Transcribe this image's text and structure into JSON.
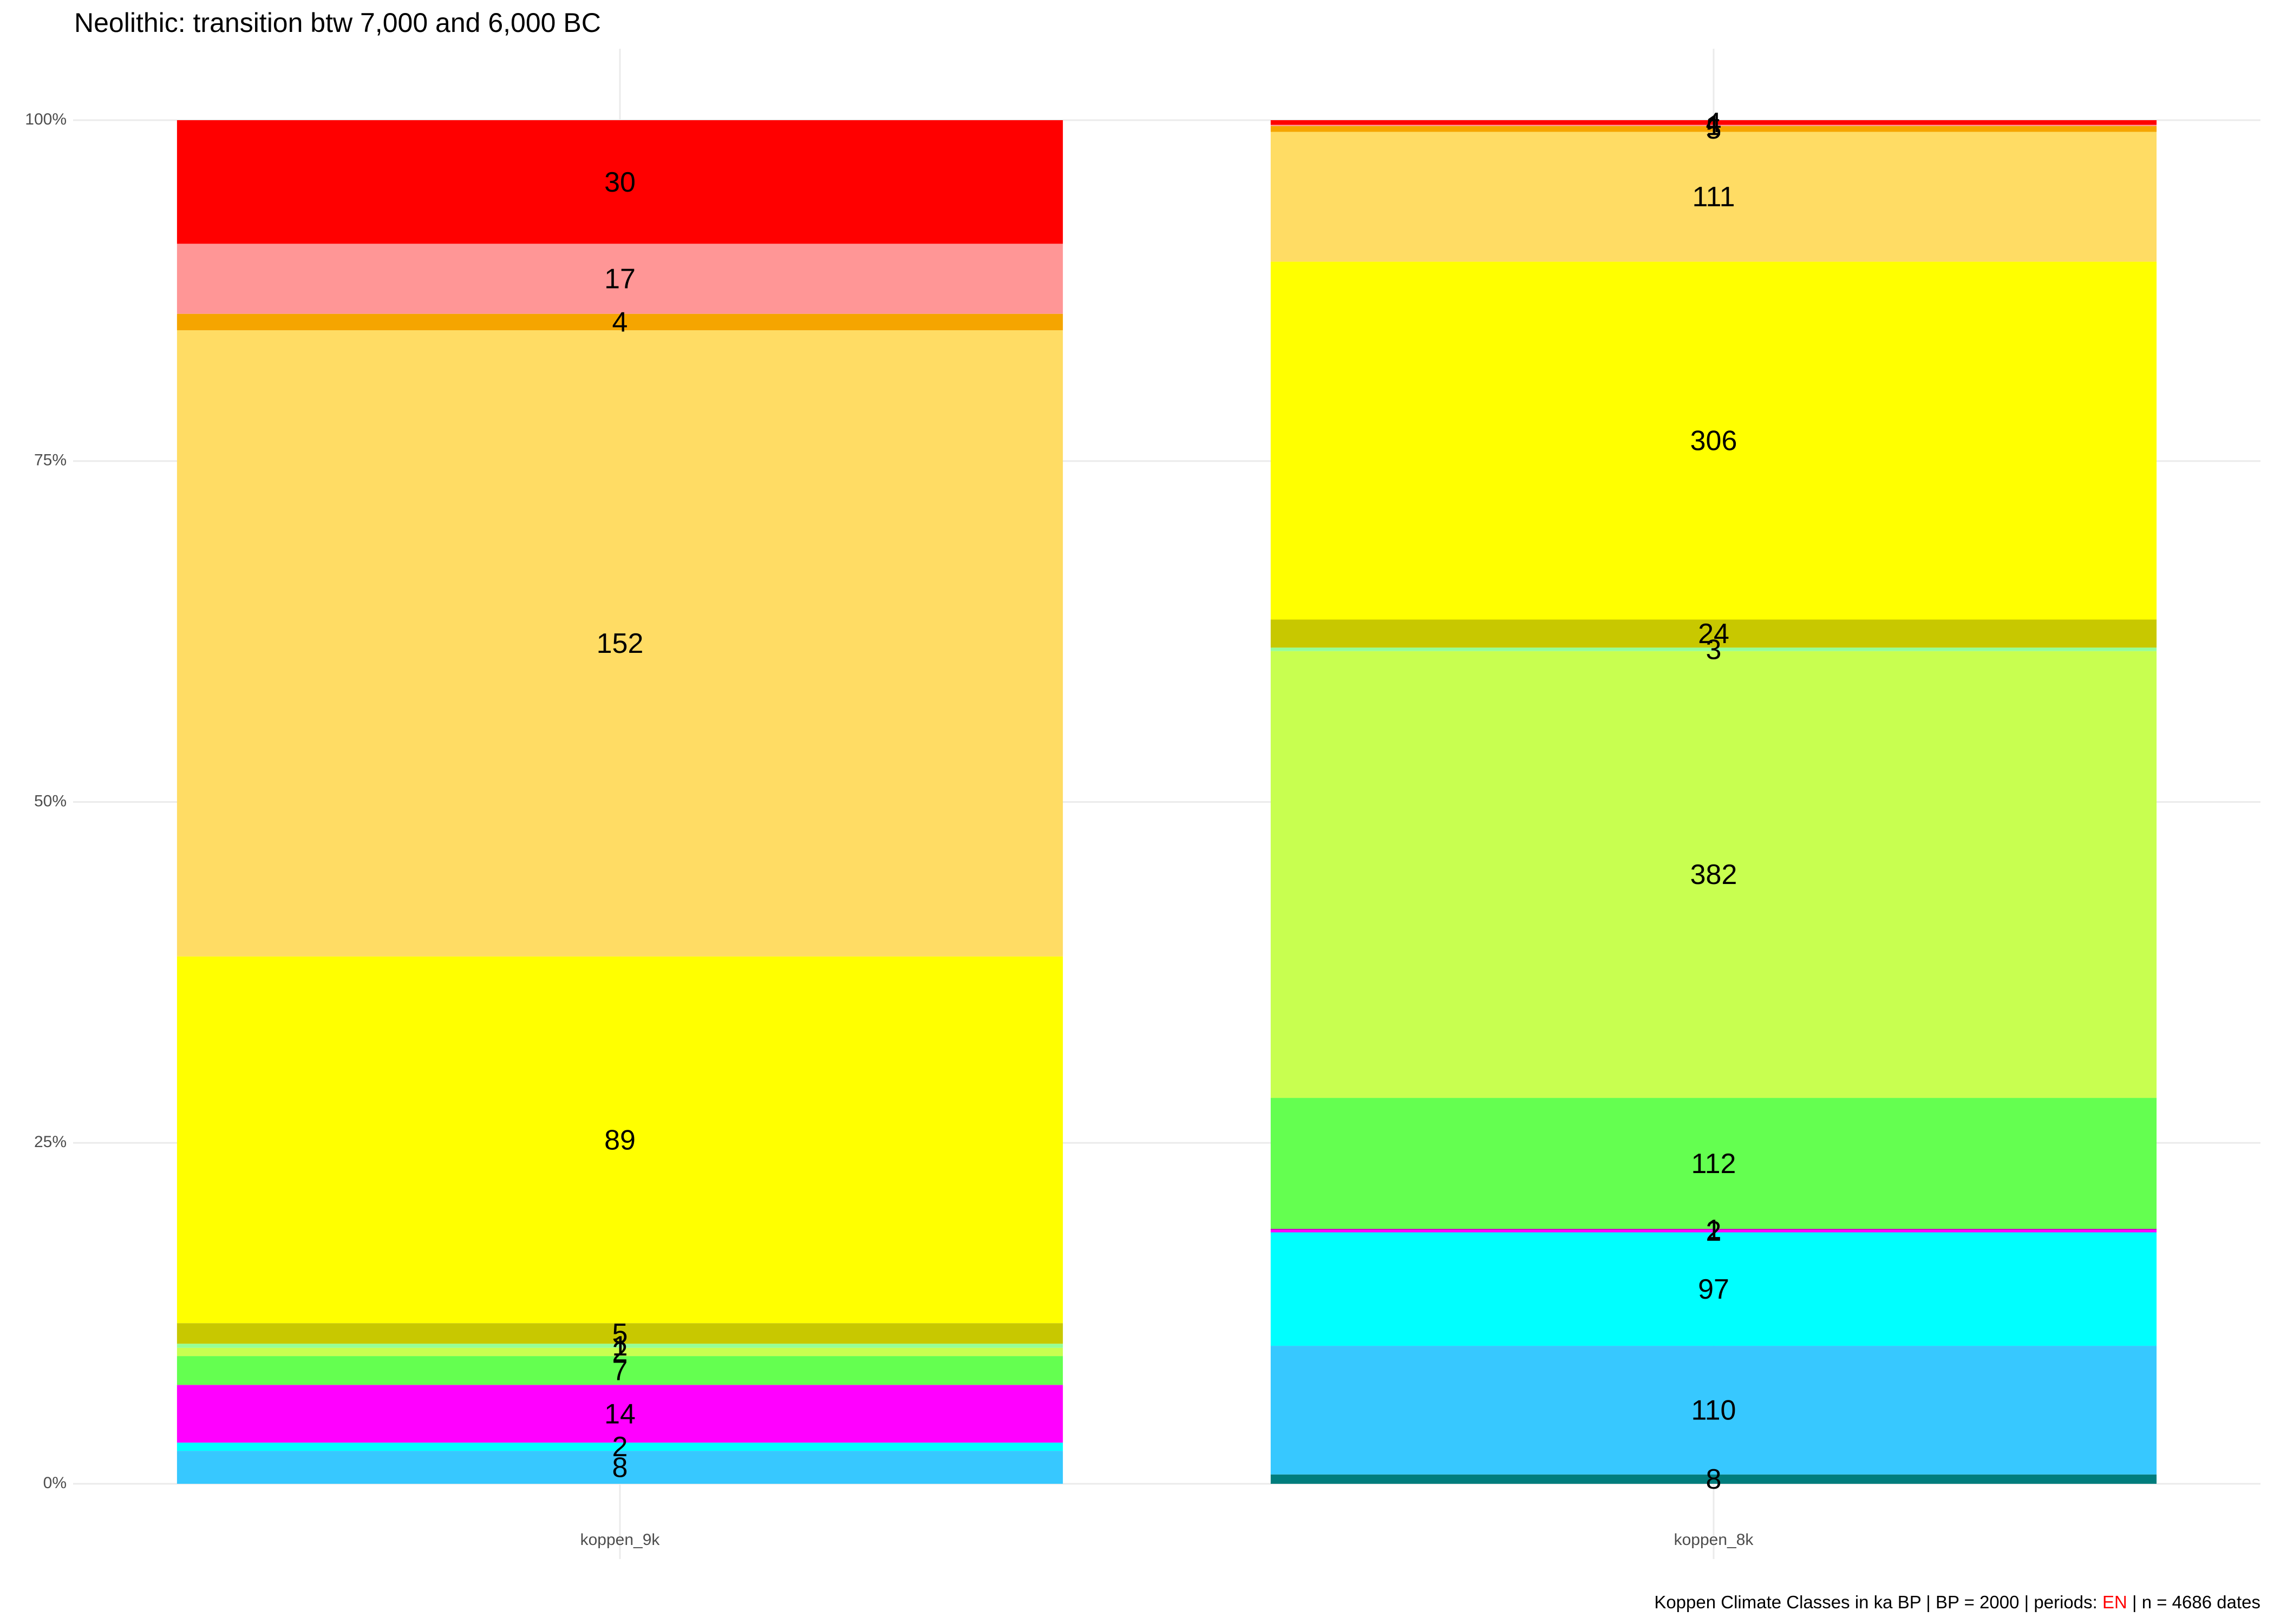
{
  "chart_data": {
    "type": "stacked_percent_bar",
    "title": "Neolithic: transition btw 7,000 and 6,000 BC",
    "caption": {
      "before": "Koppen Climate Classes in ka BP | BP = 2000 | periods: ",
      "highlight": "EN",
      "after": " | n = 4686 dates",
      "highlight_color": "#FF0000"
    },
    "categories": [
      "koppen_9k",
      "koppen_8k"
    ],
    "series": [
      {
        "color": "#007D7D",
        "values": [
          null,
          8
        ]
      },
      {
        "color": "#37C8FF",
        "values": [
          8,
          110
        ]
      },
      {
        "color": "#00FFFF",
        "values": [
          2,
          97
        ]
      },
      {
        "color": "#FF00FF",
        "values": [
          14,
          2
        ]
      },
      {
        "color": "#C800C8",
        "values": [
          null,
          1
        ]
      },
      {
        "color": "#64FF50",
        "values": [
          7,
          112
        ]
      },
      {
        "color": "#C8FF50",
        "values": [
          2,
          382
        ]
      },
      {
        "color": "#96FF96",
        "values": [
          1,
          3
        ]
      },
      {
        "color": "#C8C800",
        "values": [
          5,
          24
        ]
      },
      {
        "color": "#FFFF00",
        "values": [
          89,
          306
        ]
      },
      {
        "color": "#FFDC64",
        "values": [
          152,
          111
        ]
      },
      {
        "color": "#F5A500",
        "values": [
          4,
          5
        ]
      },
      {
        "color": "#FF9696",
        "values": [
          17,
          1
        ]
      },
      {
        "color": "#FF0000",
        "values": [
          30,
          4
        ]
      }
    ],
    "ylim": [
      0,
      100
    ],
    "yticks": [
      {
        "value": 0,
        "label": "0%"
      },
      {
        "value": 25,
        "label": "25%"
      },
      {
        "value": 50,
        "label": "50%"
      },
      {
        "value": 75,
        "label": "75%"
      },
      {
        "value": 100,
        "label": "100%"
      }
    ],
    "grid": true
  }
}
